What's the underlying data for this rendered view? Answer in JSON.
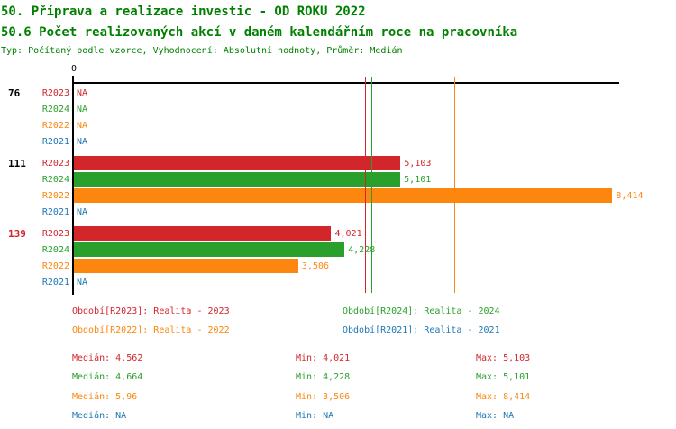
{
  "header": {
    "title_line1": "50. Příprava a realizace investic - OD ROKU 2022",
    "title_line2": "50.6 Počet realizovaných akcí v daném kalendářním roce na pracovníka",
    "meta_line": "Typ: Počítaný podle vzorce, Vyhodnocení: Absolutní hodnoty, Průměr: Medián"
  },
  "colors": {
    "title_green": "#008000",
    "axis_black": "#000000",
    "series_red": "#d2262b",
    "series_green": "#2aa02c",
    "series_orange": "#fd860f",
    "series_blue": "#1f77b4"
  },
  "chart_data": {
    "type": "bar",
    "orientation": "horizontal",
    "title": "50.6 Počet realizovaných akcí v daném kalendářním roce na pracovníka",
    "xlabel": "",
    "ylabel": "",
    "xlim": [
      0,
      8.5
    ],
    "grid": false,
    "axis": {
      "zero_label": "0"
    },
    "stats_labels": {
      "median": "Medián",
      "min": "Min",
      "max": "Max"
    },
    "series": [
      {
        "id": "R2023",
        "label": "R2023",
        "color": "#d2262b",
        "legend": "Období[R2023]: Realita - 2023",
        "median_line": 4.562,
        "stats": {
          "median": "4,562",
          "min": "4,021",
          "max": "5,103"
        }
      },
      {
        "id": "R2024",
        "label": "R2024",
        "color": "#2aa02c",
        "legend": "Období[R2024]: Realita - 2024",
        "median_line": 4.664,
        "stats": {
          "median": "4,664",
          "min": "4,228",
          "max": "5,101"
        }
      },
      {
        "id": "R2022",
        "label": "R2022",
        "color": "#fd860f",
        "legend": "Období[R2022]: Realita - 2022",
        "median_line": 5.96,
        "stats": {
          "median": "5,96",
          "min": "3,506",
          "max": "8,414"
        }
      },
      {
        "id": "R2021",
        "label": "R2021",
        "color": "#1f77b4",
        "legend": "Období[R2021]: Realita - 2021",
        "median_line": null,
        "stats": {
          "median": "NA",
          "min": "NA",
          "max": "NA"
        }
      }
    ],
    "groups": [
      {
        "label": "76",
        "label_color": "#000000",
        "bars": [
          {
            "series": "R2023",
            "value": null,
            "display": "NA"
          },
          {
            "series": "R2024",
            "value": null,
            "display": "NA"
          },
          {
            "series": "R2022",
            "value": null,
            "display": "NA"
          },
          {
            "series": "R2021",
            "value": null,
            "display": "NA"
          }
        ]
      },
      {
        "label": "111",
        "label_color": "#000000",
        "bars": [
          {
            "series": "R2023",
            "value": 5.103,
            "display": "5,103"
          },
          {
            "series": "R2024",
            "value": 5.101,
            "display": "5,101"
          },
          {
            "series": "R2022",
            "value": 8.414,
            "display": "8,414"
          },
          {
            "series": "R2021",
            "value": null,
            "display": "NA"
          }
        ]
      },
      {
        "label": "139",
        "label_color": "#d2262b",
        "bars": [
          {
            "series": "R2023",
            "value": 4.021,
            "display": "4,021"
          },
          {
            "series": "R2024",
            "value": 4.228,
            "display": "4,228"
          },
          {
            "series": "R2022",
            "value": 3.506,
            "display": "3,506"
          },
          {
            "series": "R2021",
            "value": null,
            "display": "NA"
          }
        ]
      }
    ]
  }
}
